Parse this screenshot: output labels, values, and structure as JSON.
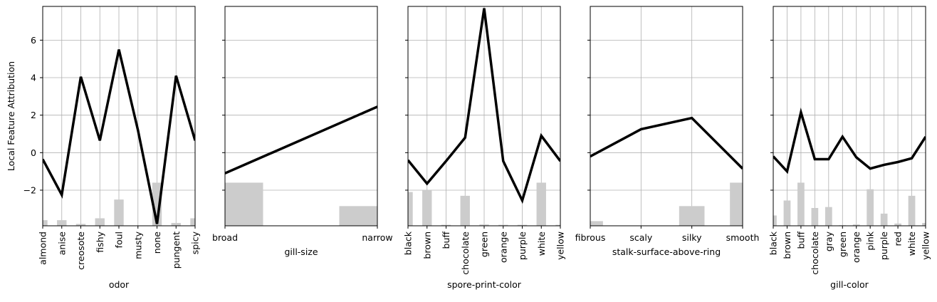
{
  "ylabel": "Local Feature Attribution",
  "y_axis": {
    "ylim": [
      -3.9,
      7.8
    ],
    "ticks": [
      6,
      4,
      2,
      0,
      -2
    ],
    "tick_labels": [
      "6",
      "4",
      "2",
      "0",
      "−2"
    ],
    "grid": true
  },
  "chart_data": [
    {
      "type": "line",
      "xlabel": "odor",
      "categories": [
        "almond",
        "anise",
        "creosote",
        "fishy",
        "foul",
        "musty",
        "none",
        "pungent",
        "spicy"
      ],
      "values": [
        -0.35,
        -2.25,
        4.05,
        0.65,
        5.5,
        1.2,
        -3.8,
        4.1,
        0.65
      ],
      "bar_values": [
        0.3,
        0.3,
        0.1,
        0.4,
        1.4,
        0.0,
        2.3,
        0.15,
        0.4
      ],
      "rotate_labels": true,
      "series_color": "#000000",
      "bar_color": "#cccccc"
    },
    {
      "type": "line",
      "xlabel": "gill-size",
      "categories": [
        "broad",
        "narrow"
      ],
      "values": [
        -1.1,
        2.45
      ],
      "bar_values": [
        2.3,
        1.05
      ],
      "rotate_labels": false,
      "series_color": "#000000",
      "bar_color": "#cccccc"
    },
    {
      "type": "line",
      "xlabel": "spore-print-color",
      "categories": [
        "black",
        "brown",
        "buff",
        "chocolate",
        "green",
        "orange",
        "purple",
        "white",
        "yellow"
      ],
      "values": [
        -0.4,
        -1.65,
        -0.45,
        0.8,
        7.7,
        -0.45,
        -2.55,
        0.9,
        -0.45
      ],
      "bar_values": [
        1.8,
        1.9,
        0.05,
        1.6,
        0.07,
        0.05,
        0.05,
        2.3,
        0.05
      ],
      "rotate_labels": true,
      "series_color": "#000000",
      "bar_color": "#cccccc"
    },
    {
      "type": "line",
      "xlabel": "stalk-surface-above-ring",
      "categories": [
        "fibrous",
        "scaly",
        "silky",
        "smooth"
      ],
      "values": [
        -0.2,
        1.25,
        1.85,
        -0.85
      ],
      "bar_values": [
        0.25,
        0.0,
        1.05,
        2.3
      ],
      "rotate_labels": false,
      "series_color": "#000000",
      "bar_color": "#cccccc"
    },
    {
      "type": "line",
      "xlabel": "gill-color",
      "categories": [
        "black",
        "brown",
        "buff",
        "chocolate",
        "gray",
        "green",
        "orange",
        "pink",
        "purple",
        "red",
        "white",
        "yellow"
      ],
      "values": [
        -0.2,
        -1.0,
        2.15,
        -0.35,
        -0.35,
        0.85,
        -0.25,
        -0.85,
        -0.65,
        -0.5,
        -0.3,
        0.85
      ],
      "bar_values": [
        0.55,
        1.35,
        2.3,
        0.95,
        1.0,
        0.03,
        0.07,
        1.95,
        0.65,
        0.12,
        1.6,
        0.15
      ],
      "rotate_labels": true,
      "series_color": "#000000",
      "bar_color": "#cccccc"
    }
  ]
}
